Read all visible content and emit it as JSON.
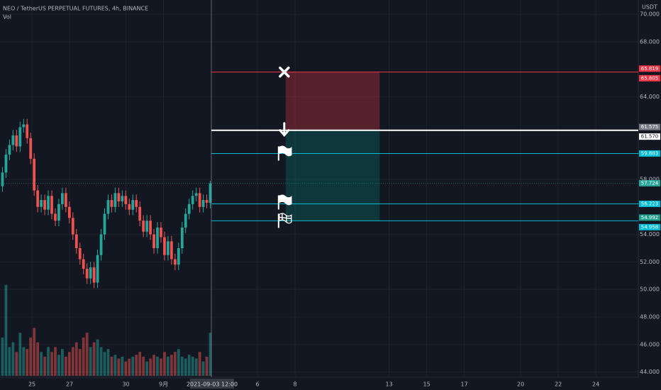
{
  "chart_data": {
    "type": "candlestick",
    "title": "NEO / TetherUS PERPETUAL FUTURES, 4h, BINANCE",
    "indicator": "Vol",
    "currency": "USDT",
    "crosshair_label": "2021-09-03 12:00",
    "up_color": "#26a69a",
    "down_color": "#ef5350",
    "open": [
      57.5,
      58.5,
      59.8,
      60.5,
      61.2,
      60.4,
      61.8,
      62.0,
      61.0,
      59.5,
      57.2,
      56.0,
      56.5,
      55.8,
      56.8,
      55.5,
      55.0,
      56.2,
      57.0,
      56.0,
      55.2,
      54.0,
      53.0,
      52.2,
      51.5,
      50.8,
      51.6,
      50.5,
      52.5,
      54.0,
      55.5,
      56.5,
      56.0,
      57.0,
      56.4,
      56.8,
      56.2,
      55.8,
      56.5,
      56.0,
      55.0,
      54.2,
      55.0,
      54.0,
      53.0,
      54.5,
      53.8,
      52.5,
      53.5,
      52.2,
      51.8,
      53.0,
      54.5,
      55.5,
      56.2,
      56.8,
      57.0,
      56.0,
      56.5,
      56.3
    ],
    "high": [
      58.9,
      60.2,
      60.9,
      61.6,
      61.6,
      62.2,
      62.4,
      62.4,
      61.4,
      59.9,
      57.6,
      56.9,
      56.9,
      57.2,
      57.2,
      55.9,
      56.6,
      57.4,
      57.4,
      56.4,
      55.6,
      54.4,
      53.4,
      52.6,
      51.9,
      52.0,
      52.0,
      52.9,
      54.4,
      55.9,
      56.9,
      56.9,
      57.4,
      57.4,
      57.2,
      57.2,
      56.6,
      56.9,
      56.9,
      56.4,
      55.4,
      55.4,
      55.4,
      54.4,
      54.9,
      54.9,
      54.2,
      53.9,
      53.9,
      52.6,
      53.4,
      54.9,
      55.9,
      56.6,
      57.2,
      57.4,
      57.4,
      56.9,
      56.9,
      57.9
    ],
    "low": [
      57.1,
      58.1,
      59.4,
      60.1,
      60.0,
      60.0,
      61.4,
      60.6,
      59.1,
      56.8,
      55.6,
      55.6,
      55.4,
      55.4,
      55.1,
      54.6,
      54.6,
      55.8,
      55.6,
      54.8,
      53.6,
      52.6,
      51.8,
      51.1,
      50.4,
      50.4,
      50.1,
      50.1,
      52.1,
      53.6,
      55.1,
      55.6,
      55.6,
      56.0,
      56.0,
      55.8,
      55.4,
      55.4,
      55.6,
      54.6,
      53.8,
      53.8,
      53.6,
      52.6,
      52.6,
      53.4,
      52.1,
      52.1,
      51.8,
      51.4,
      51.4,
      52.6,
      54.1,
      55.1,
      55.8,
      56.4,
      55.6,
      55.6,
      55.9,
      55.9
    ],
    "close": [
      58.5,
      59.8,
      60.5,
      61.2,
      60.4,
      61.8,
      62.0,
      61.0,
      59.5,
      57.2,
      56.0,
      56.5,
      55.8,
      56.8,
      55.5,
      55.0,
      56.2,
      57.0,
      56.0,
      55.2,
      54.0,
      53.0,
      52.2,
      51.5,
      50.8,
      51.6,
      50.5,
      52.5,
      54.0,
      55.5,
      56.5,
      56.0,
      57.0,
      56.4,
      56.8,
      56.2,
      55.8,
      56.5,
      56.0,
      55.0,
      54.2,
      55.0,
      54.0,
      53.0,
      54.5,
      53.8,
      52.5,
      53.5,
      52.2,
      51.8,
      53.0,
      54.5,
      55.5,
      56.2,
      56.8,
      57.0,
      56.0,
      56.5,
      56.3,
      57.7
    ],
    "volume": [
      40,
      95,
      30,
      35,
      25,
      45,
      30,
      28,
      40,
      50,
      35,
      25,
      20,
      30,
      25,
      30,
      22,
      28,
      20,
      25,
      30,
      35,
      28,
      40,
      45,
      30,
      35,
      38,
      30,
      25,
      28,
      20,
      22,
      18,
      20,
      15,
      18,
      20,
      22,
      25,
      20,
      15,
      18,
      22,
      20,
      18,
      25,
      20,
      22,
      25,
      28,
      20,
      18,
      22,
      20,
      18,
      25,
      15,
      20,
      45
    ],
    "vlim": [
      0,
      100
    ],
    "ylim": [
      43.5,
      70.5
    ],
    "yticks": [
      {
        "value": 44,
        "label": "44.000"
      },
      {
        "value": 46,
        "label": "46.000"
      },
      {
        "value": 48,
        "label": "48.000"
      },
      {
        "value": 50,
        "label": "50.000"
      },
      {
        "value": 52,
        "label": "52.000"
      },
      {
        "value": 54,
        "label": "54.000"
      },
      {
        "value": 58,
        "label": "58.000"
      },
      {
        "value": 64,
        "label": "64.000"
      },
      {
        "value": 68,
        "label": "68.000"
      },
      {
        "value": 70,
        "label": "70.000"
      }
    ],
    "xlim": [
      23.3,
      57.26
    ],
    "xticks": [
      {
        "value": 25,
        "label": "25"
      },
      {
        "value": 27,
        "label": "27"
      },
      {
        "value": 30,
        "label": "30"
      },
      {
        "value": 32,
        "label": "9月"
      },
      {
        "value": 37,
        "label": "6"
      },
      {
        "value": 39,
        "label": "8"
      },
      {
        "value": 44,
        "label": "13"
      },
      {
        "value": 46,
        "label": "15"
      },
      {
        "value": 48,
        "label": "17"
      },
      {
        "value": 51,
        "label": "20"
      },
      {
        "value": 53,
        "label": "22"
      },
      {
        "value": 55,
        "label": "24"
      }
    ],
    "position": {
      "start": 38.5,
      "end": 43.5,
      "stop": 65.805,
      "entry": 61.57,
      "targets": [
        59.883,
        56.223,
        54.992
      ],
      "stop_color": "#f23645",
      "entry_color": "#ffffff",
      "target_color": "#00bcd4"
    },
    "last_price": 57.724,
    "axis_labels": [
      {
        "value": 65.819,
        "label": "65.819",
        "color": "#f23645"
      },
      {
        "value": 65.805,
        "label": "65.805",
        "color": "#f23645"
      },
      {
        "value": 61.575,
        "label": "61.575",
        "color": "#787b86"
      },
      {
        "value": 61.57,
        "label": "61.570",
        "color": "#ffffff"
      },
      {
        "value": 59.883,
        "label": "59.883",
        "color": "#00bcd4"
      },
      {
        "value": 57.724,
        "label": "57.724",
        "color": "#26a69a"
      },
      {
        "value": 56.223,
        "label": "56.223",
        "color": "#00bcd4"
      },
      {
        "value": 54.992,
        "label": "54.992",
        "color": "#1e9e8c"
      },
      {
        "value": 54.958,
        "label": "54.958",
        "color": "#00bcd4"
      }
    ]
  }
}
